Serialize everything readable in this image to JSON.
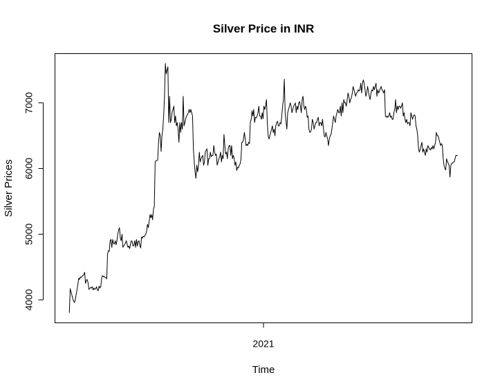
{
  "chart_data": {
    "type": "line",
    "title": "Silver Price in INR",
    "xlabel": "Time",
    "ylabel": "Silver Prices",
    "x_tick_labels": [
      {
        "t": 0.5,
        "label": "2021"
      }
    ],
    "y_ticks": [
      4000,
      5000,
      6000,
      7000
    ],
    "ylim": [
      3650,
      7750
    ],
    "xlim": [
      -0.037,
      1.037
    ],
    "grid": false,
    "legend": "none",
    "series": [
      {
        "name": "Silver Prices",
        "color": "#000000",
        "values": [
          3800,
          4170,
          4120,
          4070,
          4020,
          3980,
          3960,
          4000,
          4080,
          4150,
          4230,
          4330,
          4310,
          4350,
          4340,
          4360,
          4370,
          4380,
          4420,
          4250,
          4300,
          4310,
          4260,
          4160,
          4170,
          4190,
          4180,
          4200,
          4150,
          4180,
          4160,
          4170,
          4200,
          4150,
          4140,
          4210,
          4180,
          4200,
          4330,
          4370,
          4350,
          4360,
          4340,
          4340,
          4320,
          4700,
          4750,
          4740,
          4900,
          4920,
          4800,
          4920,
          4860,
          4850,
          4900,
          4840,
          4900,
          5000,
          5060,
          5100,
          4940,
          4900,
          5000,
          4800,
          4820,
          4840,
          4860,
          4900,
          4850,
          4800,
          4820,
          4780,
          4850,
          4900,
          4890,
          4820,
          4830,
          4900,
          4800,
          4920,
          4820,
          4890,
          4900,
          4830,
          4790,
          4960,
          4940,
          4970,
          4960,
          4980,
          5000,
          5050,
          5150,
          5100,
          5200,
          5300,
          5250,
          5300,
          5220,
          5380,
          5420,
          6100,
          6120,
          6120,
          6130,
          6400,
          6550,
          6500,
          6260,
          6500,
          6600,
          6800,
          7100,
          7600,
          7440,
          7500,
          7550,
          6700,
          7100,
          6700,
          6750,
          6860,
          6900,
          6950,
          6700,
          6800,
          6650,
          6700,
          6600,
          6400,
          6700,
          6550,
          6700,
          6600,
          7100,
          6650,
          6700,
          6760,
          6800,
          6820,
          6850,
          6900,
          6850,
          6900,
          6850,
          6800,
          6300,
          6100,
          5950,
          5850,
          6050,
          5950,
          6050,
          6250,
          6100,
          6150,
          6180,
          6200,
          6050,
          6100,
          6250,
          6280,
          6300,
          6050,
          6150,
          6150,
          6250,
          6180,
          6200,
          6200,
          6350,
          6250,
          6200,
          6220,
          6050,
          6100,
          6150,
          6180,
          6250,
          6100,
          6200,
          6150,
          6520,
          6350,
          6220,
          6250,
          6150,
          6300,
          6350,
          6350,
          6200,
          6350,
          6150,
          6200,
          6150,
          6050,
          6100,
          5970,
          6020,
          6010,
          6050,
          6070,
          6150,
          6400,
          6400,
          6450,
          6550,
          6450,
          6350,
          6370,
          6350,
          6400,
          6380,
          6700,
          6750,
          6880,
          6800,
          6900,
          6700,
          6780,
          6770,
          6800,
          6850,
          6950,
          6800,
          6800,
          6750,
          6850,
          6760,
          6950,
          6900,
          6950,
          7050,
          6700,
          6500,
          6450,
          6500,
          6550,
          6600,
          6650,
          6550,
          6600,
          6500,
          6650,
          6700,
          6720,
          6650,
          6650,
          6700,
          6680,
          6800,
          6950,
          7050,
          7360,
          6850,
          6720,
          6600,
          6850,
          6900,
          6950,
          7000,
          6950,
          6850,
          6900,
          6950,
          6970,
          7000,
          6850,
          6950,
          6900,
          7000,
          7020,
          6950,
          6850,
          7050,
          7100,
          6950,
          6900,
          6950,
          6900,
          6780,
          6800,
          6600,
          6550,
          6560,
          6600,
          6750,
          6700,
          6600,
          6650,
          6700,
          6700,
          6750,
          6780,
          6650,
          6700,
          6700,
          6650,
          6750,
          6620,
          6500,
          6480,
          6550,
          6500,
          6450,
          6350,
          6450,
          6500,
          6520,
          6600,
          6700,
          6800,
          6750,
          6700,
          6800,
          6850,
          6900,
          6850,
          6850,
          6950,
          6800,
          7000,
          6850,
          7050,
          7000,
          7000,
          6950,
          7050,
          7150,
          7100,
          7000,
          7050,
          7080,
          7150,
          7250,
          7200,
          7150,
          7100,
          7150,
          7160,
          7200,
          7180,
          7200,
          7300,
          7150,
          7300,
          7350,
          7300,
          7200,
          7100,
          7150,
          7250,
          7180,
          7100,
          7050,
          7150,
          7200,
          7180,
          7250,
          7200,
          7250,
          7300,
          7100,
          7200,
          7150,
          7180,
          7220,
          7250,
          7200,
          7180,
          7150,
          7200,
          6800,
          6780,
          6800,
          6780,
          6800,
          6850,
          6780,
          6800,
          6750,
          6750,
          6850,
          6900,
          7050,
          6850,
          6950,
          6900,
          6950,
          6950,
          6920,
          6950,
          7000,
          6800,
          6850,
          6750,
          6700,
          6750,
          6680,
          6700,
          6700,
          6650,
          6850,
          6800,
          6750,
          6800,
          6820,
          6800,
          6650,
          6600,
          6500,
          6300,
          6250,
          6300,
          6350,
          6400,
          6250,
          6300,
          6250,
          6200,
          6300,
          6250,
          6350,
          6320,
          6300,
          6280,
          6320,
          6300,
          6350,
          6300,
          6350,
          6400,
          6550,
          6500,
          6500,
          6450,
          6400,
          6350,
          6380,
          6350,
          6150,
          6050,
          6000,
          5980,
          6150,
          6100,
          6080,
          6050,
          5870,
          6050,
          6080,
          6080,
          6100,
          6100,
          6150,
          6200,
          6200,
          6200
        ]
      }
    ]
  }
}
